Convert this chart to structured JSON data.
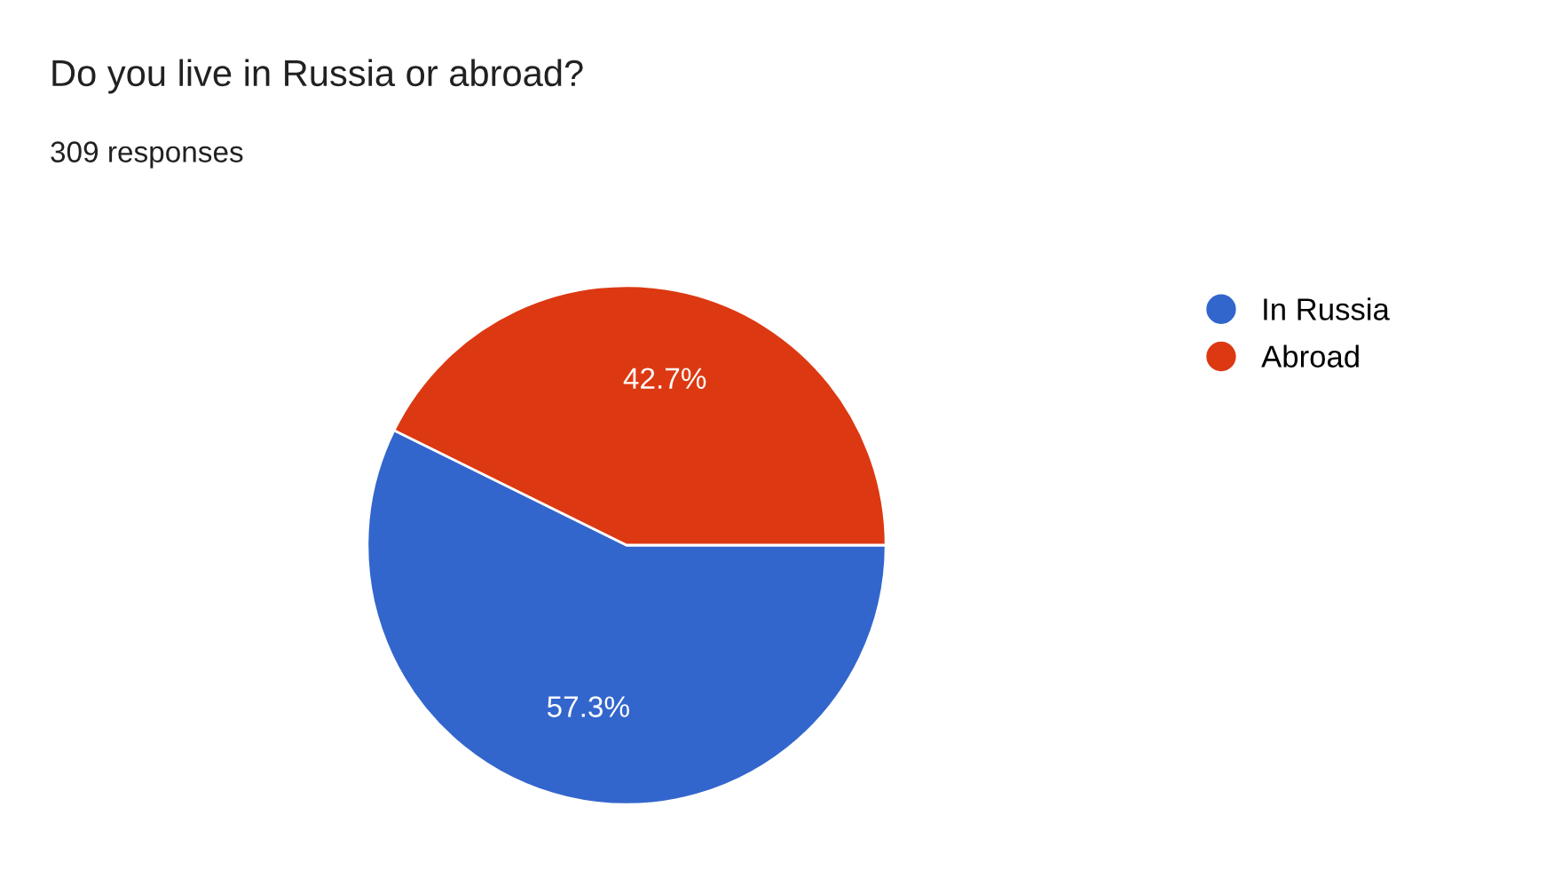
{
  "chart_data": {
    "type": "pie",
    "title": "Do you live in Russia or abroad?",
    "subtitle": "309 responses",
    "categories": [
      "In Russia",
      "Abroad"
    ],
    "values": [
      57.3,
      42.7
    ],
    "colors": [
      "#3366cc",
      "#dc3912"
    ],
    "value_labels": [
      "57.3%",
      "42.7%"
    ],
    "legend": "right"
  }
}
